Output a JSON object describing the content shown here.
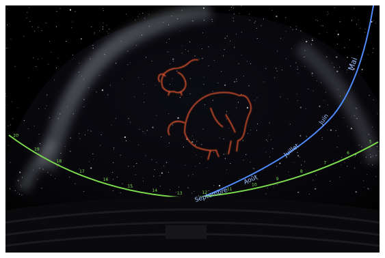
{
  "image": {
    "kind": "planetarium-dome-photo",
    "constellations": [
      "lion-figure",
      "bear-figure"
    ],
    "figure_color": "#e8572f",
    "ecliptic_color": "#4f8cff",
    "horizon_color": "#7cdc4e"
  },
  "ecliptic_months": [
    "Septembre",
    "Août",
    "Juillet",
    "Juin",
    "Mai"
  ],
  "horizon_numbers": [
    "20",
    "19",
    "18",
    "17",
    "16",
    "15",
    "14",
    "13",
    "12",
    "11",
    "10",
    "9",
    "8",
    "7",
    "6",
    "5"
  ]
}
